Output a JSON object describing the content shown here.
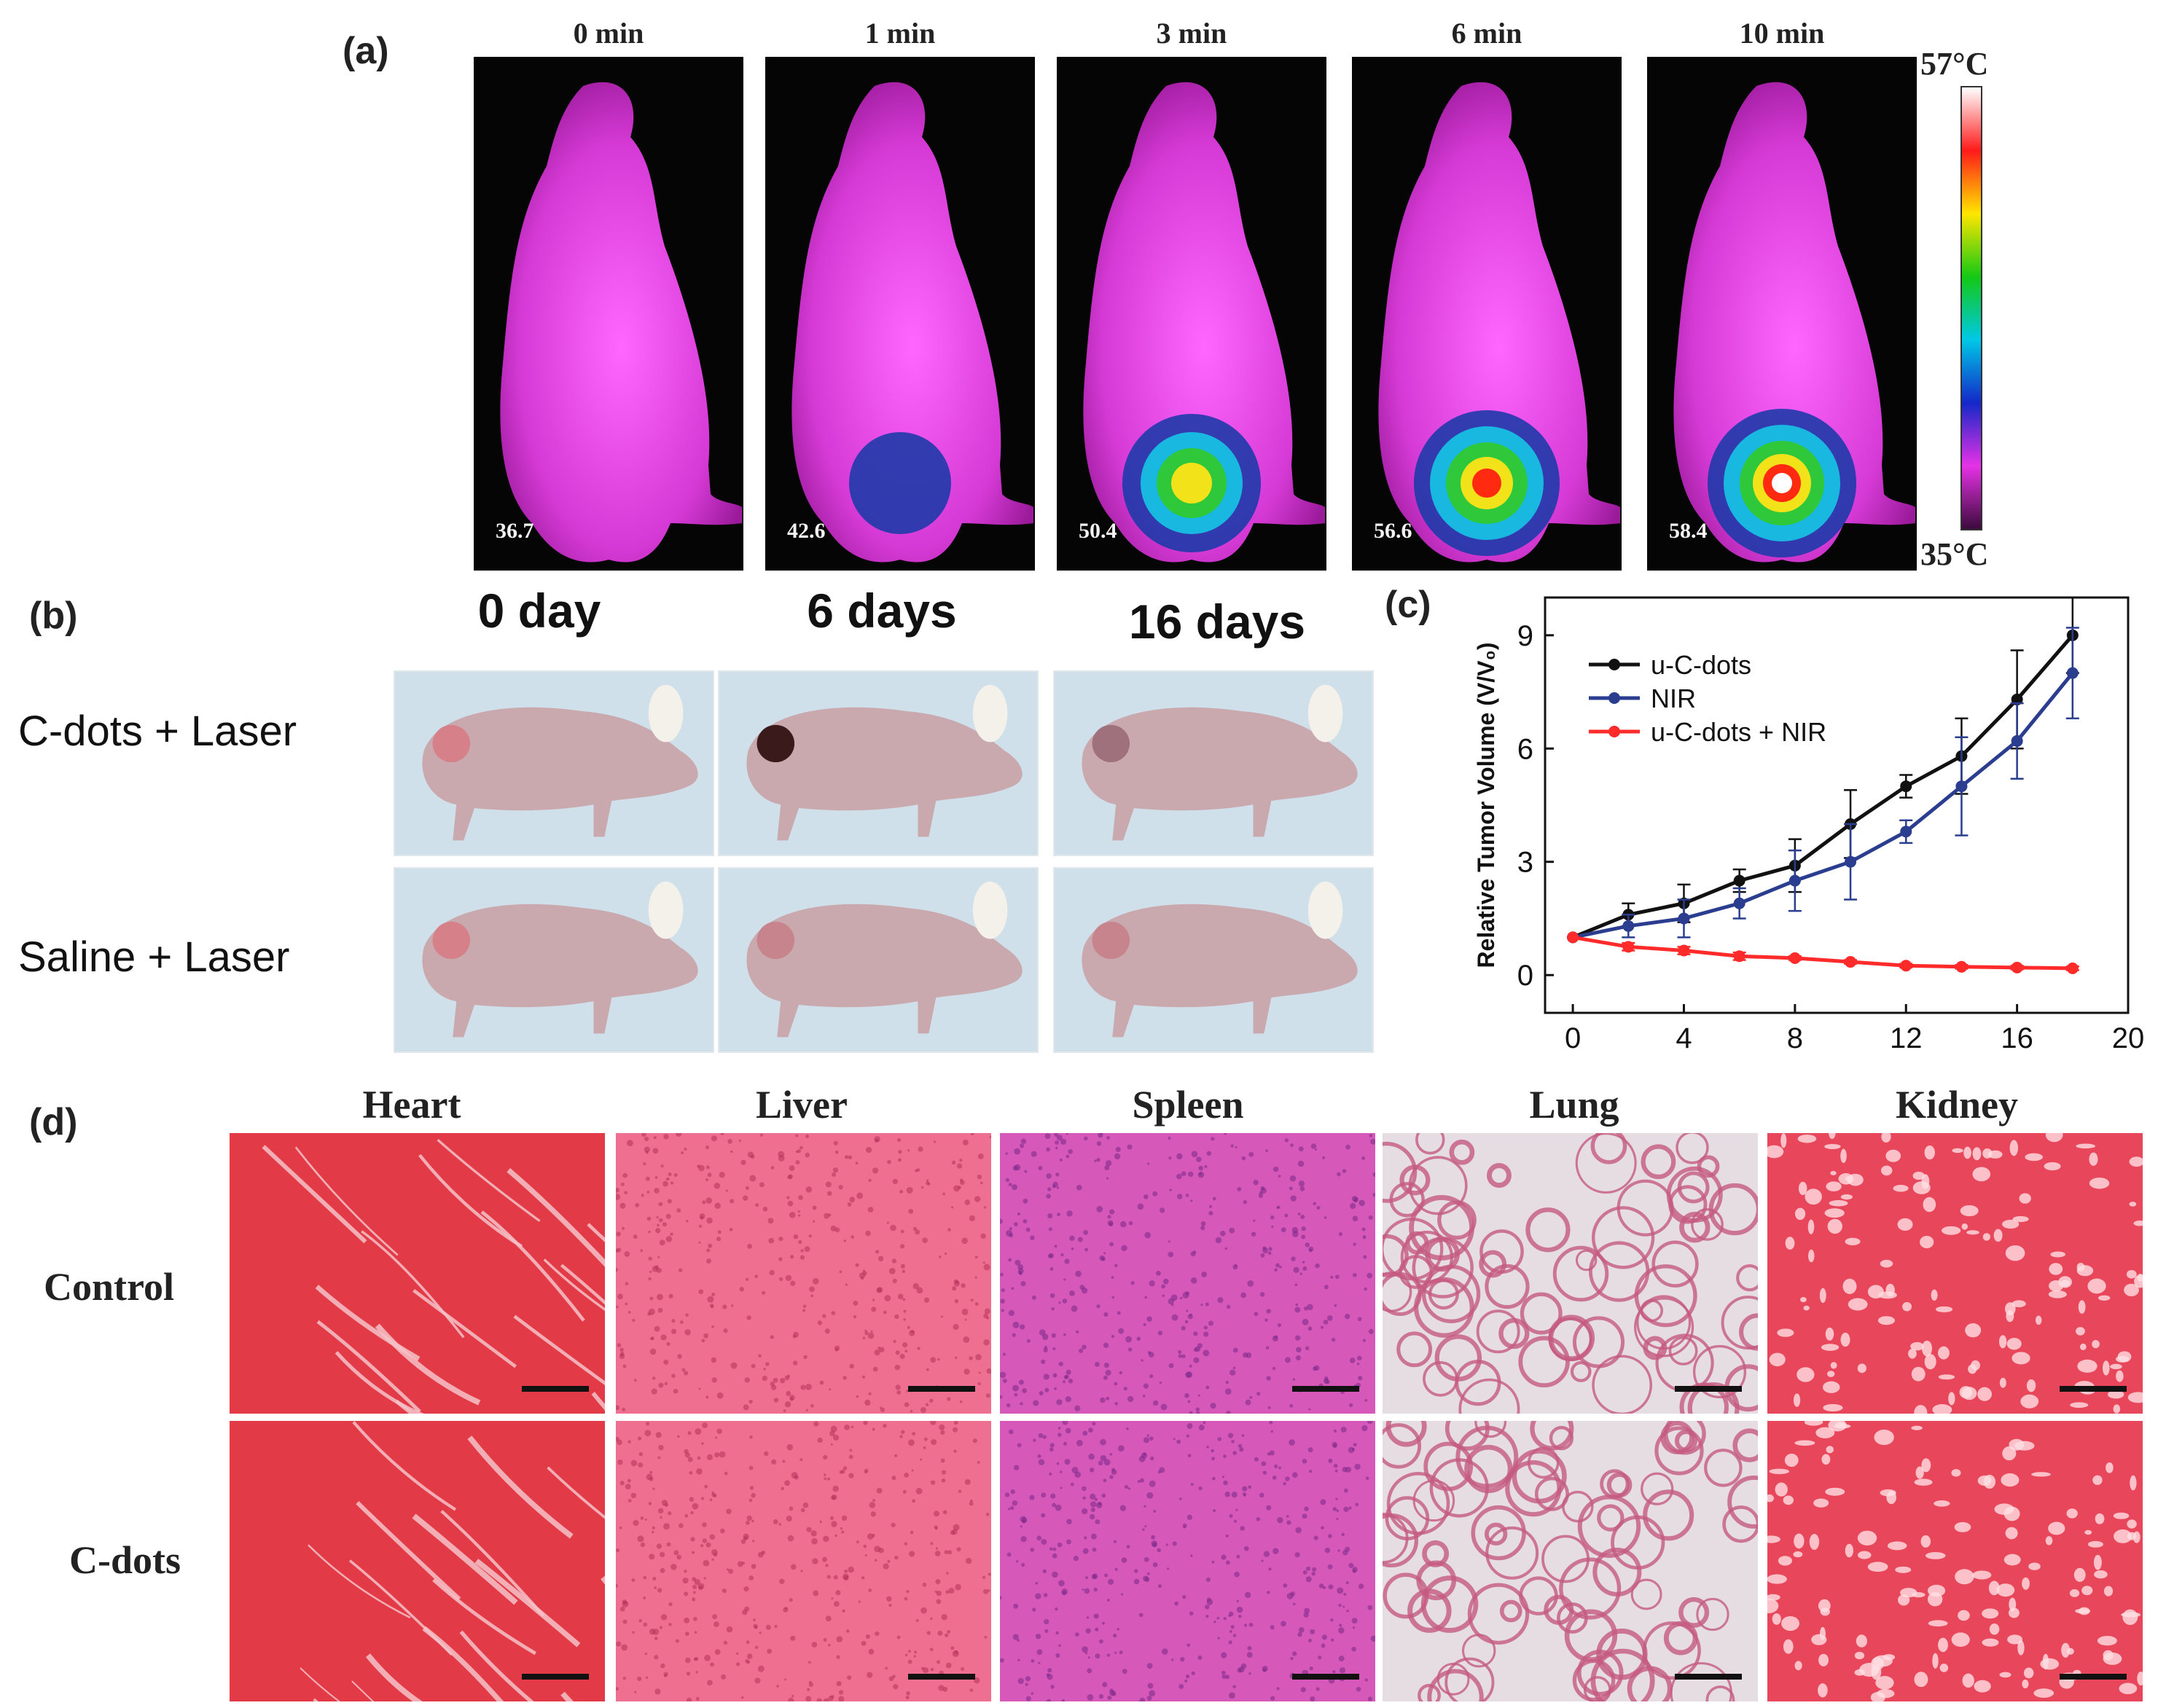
{
  "panel_a": {
    "letter": "(a)",
    "time_labels": [
      "0 min",
      "1 min",
      "3 min",
      "6 min",
      "10 min"
    ],
    "temperatures": [
      "36.7",
      "42.6",
      "50.4",
      "56.6",
      "58.4"
    ],
    "scale_max": "57°C",
    "scale_min": "35°C",
    "scale_colors": [
      "#ffffff",
      "#ff1a1a",
      "#ffe600",
      "#14c814",
      "#00c8e6",
      "#1428c8",
      "#e632e6",
      "#3c0a3c"
    ]
  },
  "panel_b": {
    "letter": "(b)",
    "day_labels": [
      "0 day",
      "6 days",
      "16 days"
    ],
    "row_labels": [
      "C-dots + Laser",
      "Saline + Laser"
    ]
  },
  "panel_c": {
    "letter": "(c)"
  },
  "chart_data": {
    "type": "line",
    "ylabel": "Relative Tumor Volume (V/V₀)",
    "xlabel": "",
    "xlim": [
      -1,
      20
    ],
    "ylim": [
      -1,
      10
    ],
    "xticks": [
      "0",
      "4",
      "8",
      "12",
      "16",
      "20"
    ],
    "yticks": [
      "0",
      "3",
      "6",
      "9"
    ],
    "x": [
      0,
      2,
      4,
      6,
      8,
      10,
      12,
      14,
      16,
      18
    ],
    "series": [
      {
        "name": "u-C-dots",
        "color": "#111111",
        "values": [
          1.0,
          1.6,
          1.9,
          2.5,
          2.9,
          4.0,
          5.0,
          5.8,
          7.3,
          9.0
        ],
        "errors": [
          0,
          0.3,
          0.5,
          0.3,
          0.7,
          0.9,
          0.3,
          1.0,
          1.3,
          1.0
        ]
      },
      {
        "name": "NIR",
        "color": "#2a3d8f",
        "values": [
          1.0,
          1.3,
          1.5,
          1.9,
          2.5,
          3.0,
          3.8,
          5.0,
          6.2,
          8.0
        ],
        "errors": [
          0,
          0.3,
          0.5,
          0.4,
          0.8,
          1.0,
          0.3,
          1.3,
          1.0,
          1.2
        ]
      },
      {
        "name": "u-C-dots + NIR",
        "color": "#ff2a2a",
        "values": [
          1.0,
          0.75,
          0.65,
          0.5,
          0.45,
          0.35,
          0.25,
          0.22,
          0.2,
          0.18
        ],
        "errors": [
          0,
          0.1,
          0.1,
          0.1,
          0.05,
          0.05,
          0.05,
          0.05,
          0.05,
          0.05
        ]
      }
    ]
  },
  "panel_d": {
    "letter": "(d)",
    "organs": [
      "Heart",
      "Liver",
      "Spleen",
      "Lung",
      "Kidney"
    ],
    "row_labels": [
      "Control",
      "C-dots"
    ]
  }
}
